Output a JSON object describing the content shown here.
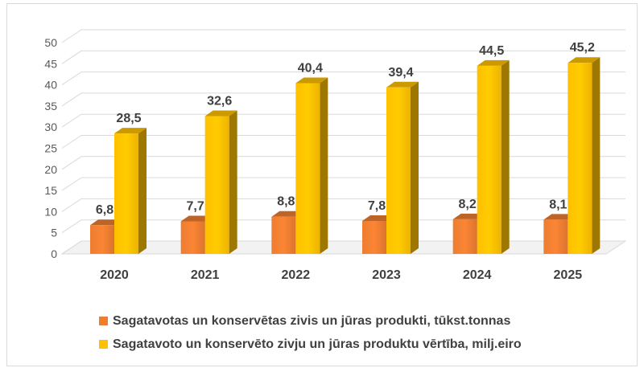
{
  "chart_data": {
    "type": "bar",
    "categories": [
      "2020",
      "2021",
      "2022",
      "2023",
      "2024",
      "2025"
    ],
    "series": [
      {
        "name": "Sagatavotas un konservētas zivis un jūras produkti, tūkst.tonnas",
        "values": [
          6.8,
          7.7,
          8.8,
          7.8,
          8.2,
          8.1
        ],
        "labels": [
          "6,8",
          "7,7",
          "8,8",
          "7,8",
          "8,2",
          "8,1"
        ],
        "color": "#ed7d31"
      },
      {
        "name": "Sagatavoto un konservēto zivju un jūras produktu vērtība, milj.eiro",
        "values": [
          28.5,
          32.6,
          40.4,
          39.4,
          44.5,
          45.2
        ],
        "labels": [
          "28,5",
          "32,6",
          "40,4",
          "39,4",
          "44,5",
          "45,2"
        ],
        "color": "#ffc000"
      }
    ],
    "yticks": [
      "0",
      "5",
      "10",
      "15",
      "20",
      "25",
      "30",
      "35",
      "40",
      "45",
      "50"
    ],
    "ylim": [
      0,
      50
    ],
    "grid": true,
    "style": "3d-clustered-column",
    "legend_position": "bottom"
  }
}
